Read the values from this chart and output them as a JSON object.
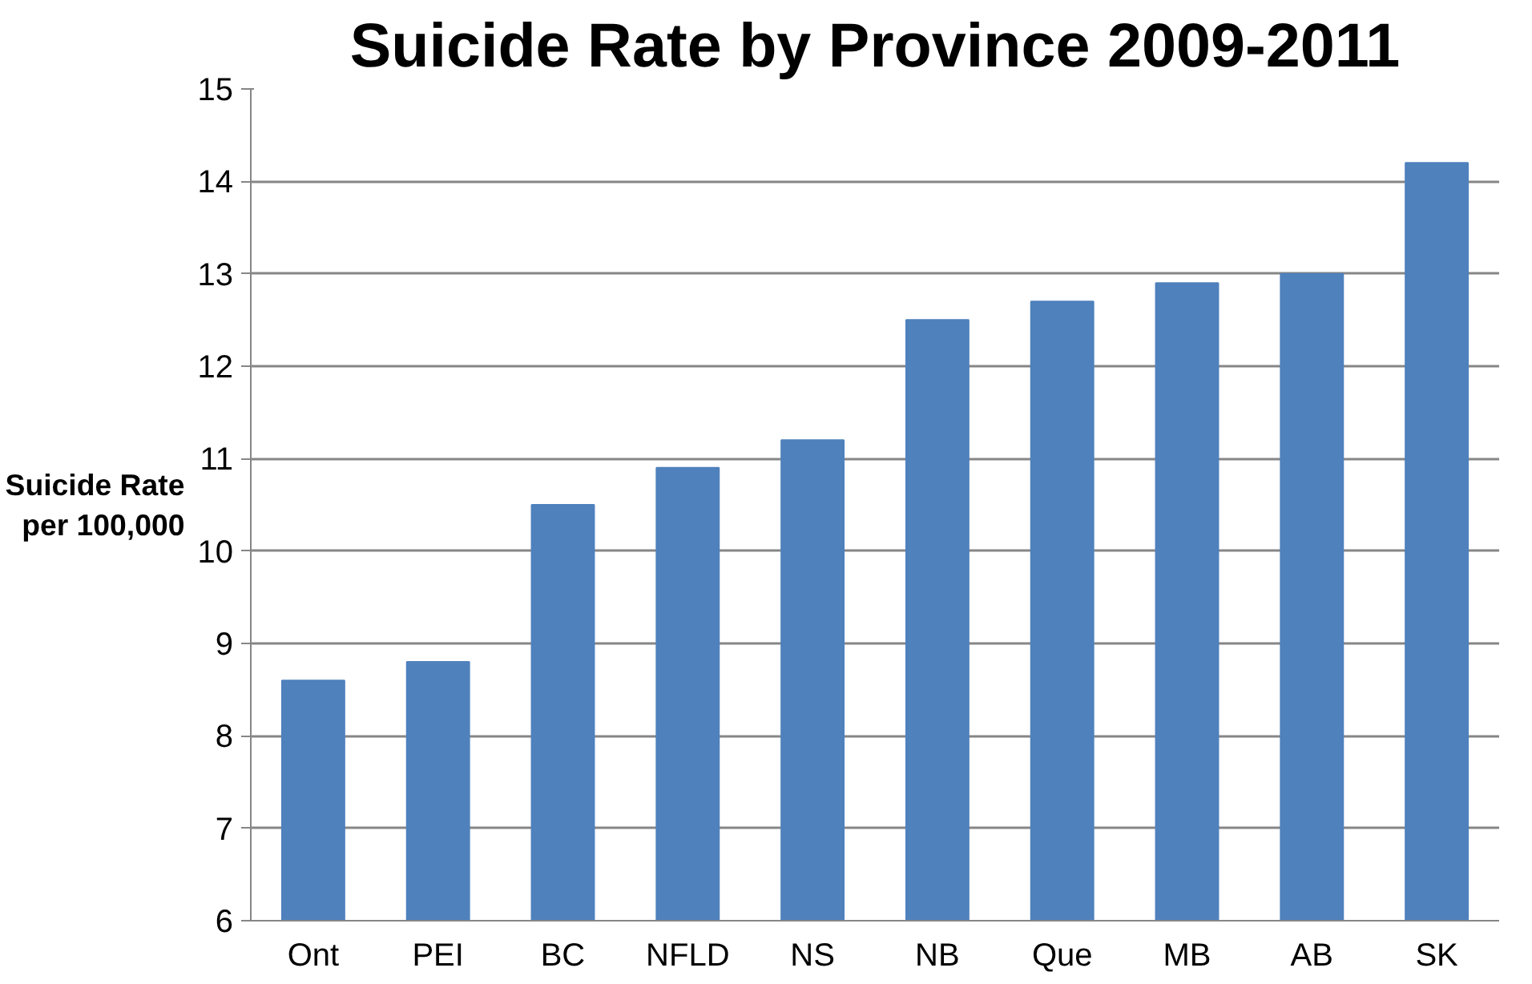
{
  "chart_data": {
    "type": "bar",
    "title": "Suicide Rate by Province 2009-2011",
    "ylabel": "Suicide Rate\nper 100,000",
    "categories": [
      "Ont",
      "PEI",
      "BC",
      "NFLD",
      "NS",
      "NB",
      "Que",
      "MB",
      "AB",
      "SK"
    ],
    "values": [
      8.6,
      8.8,
      10.5,
      10.9,
      11.2,
      12.5,
      12.7,
      12.9,
      13.0,
      14.2
    ],
    "color": "#4f81bd",
    "ylim": [
      6,
      15
    ],
    "yticks": [
      6,
      7,
      8,
      9,
      10,
      11,
      12,
      13,
      14,
      15
    ],
    "grid": "y"
  }
}
